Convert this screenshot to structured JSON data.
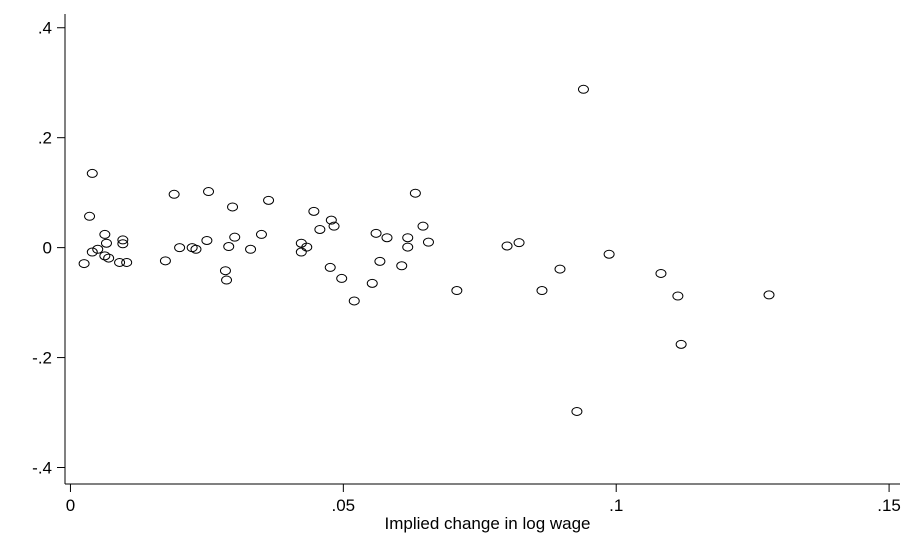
{
  "chart_data": {
    "type": "scatter",
    "title": "",
    "xlabel": "Implied change in log wage",
    "ylabel": "",
    "xlim": [
      -0.001,
      0.152
    ],
    "ylim": [
      -0.43,
      0.425
    ],
    "xticks": [
      {
        "value": 0,
        "label": "0"
      },
      {
        "value": 0.05,
        "label": ".05"
      },
      {
        "value": 0.1,
        "label": ".1"
      },
      {
        "value": 0.15,
        "label": ".15"
      }
    ],
    "yticks": [
      {
        "value": -0.4,
        "label": "-.4"
      },
      {
        "value": -0.2,
        "label": "-.2"
      },
      {
        "value": 0,
        "label": "0"
      },
      {
        "value": 0.2,
        "label": ".2"
      },
      {
        "value": 0.4,
        "label": ".4"
      }
    ],
    "marker": "hollow-circle",
    "grid": false,
    "points": [
      {
        "x": 0.0025,
        "y": -0.029
      },
      {
        "x": 0.0035,
        "y": 0.057
      },
      {
        "x": 0.004,
        "y": 0.135
      },
      {
        "x": 0.004,
        "y": -0.008
      },
      {
        "x": 0.005,
        "y": -0.003
      },
      {
        "x": 0.0063,
        "y": 0.024
      },
      {
        "x": 0.0063,
        "y": -0.015
      },
      {
        "x": 0.0066,
        "y": 0.008
      },
      {
        "x": 0.007,
        "y": -0.019
      },
      {
        "x": 0.009,
        "y": -0.027
      },
      {
        "x": 0.0096,
        "y": 0.014
      },
      {
        "x": 0.0096,
        "y": 0.007
      },
      {
        "x": 0.0103,
        "y": -0.027
      },
      {
        "x": 0.0174,
        "y": -0.024
      },
      {
        "x": 0.019,
        "y": 0.097
      },
      {
        "x": 0.02,
        "y": 0.0
      },
      {
        "x": 0.0223,
        "y": 0.0
      },
      {
        "x": 0.023,
        "y": -0.003
      },
      {
        "x": 0.025,
        "y": 0.013
      },
      {
        "x": 0.0253,
        "y": 0.102
      },
      {
        "x": 0.0284,
        "y": -0.042
      },
      {
        "x": 0.0286,
        "y": -0.059
      },
      {
        "x": 0.029,
        "y": 0.002
      },
      {
        "x": 0.0297,
        "y": 0.074
      },
      {
        "x": 0.0301,
        "y": 0.019
      },
      {
        "x": 0.033,
        "y": -0.003
      },
      {
        "x": 0.035,
        "y": 0.024
      },
      {
        "x": 0.0363,
        "y": 0.086
      },
      {
        "x": 0.0423,
        "y": 0.008
      },
      {
        "x": 0.0423,
        "y": -0.008
      },
      {
        "x": 0.0433,
        "y": 0.001
      },
      {
        "x": 0.0446,
        "y": 0.066
      },
      {
        "x": 0.0457,
        "y": 0.033
      },
      {
        "x": 0.0476,
        "y": -0.036
      },
      {
        "x": 0.0478,
        "y": 0.05
      },
      {
        "x": 0.0483,
        "y": 0.039
      },
      {
        "x": 0.0497,
        "y": -0.056
      },
      {
        "x": 0.052,
        "y": -0.097
      },
      {
        "x": 0.0553,
        "y": -0.065
      },
      {
        "x": 0.056,
        "y": 0.026
      },
      {
        "x": 0.0567,
        "y": -0.025
      },
      {
        "x": 0.058,
        "y": 0.018
      },
      {
        "x": 0.0607,
        "y": -0.033
      },
      {
        "x": 0.0618,
        "y": 0.018
      },
      {
        "x": 0.0618,
        "y": 0.001
      },
      {
        "x": 0.0632,
        "y": 0.099
      },
      {
        "x": 0.0646,
        "y": 0.039
      },
      {
        "x": 0.0656,
        "y": 0.01
      },
      {
        "x": 0.0708,
        "y": -0.078
      },
      {
        "x": 0.08,
        "y": 0.003
      },
      {
        "x": 0.0822,
        "y": 0.009
      },
      {
        "x": 0.0864,
        "y": -0.078
      },
      {
        "x": 0.0897,
        "y": -0.039
      },
      {
        "x": 0.0928,
        "y": -0.298
      },
      {
        "x": 0.094,
        "y": 0.288
      },
      {
        "x": 0.0987,
        "y": -0.012
      },
      {
        "x": 0.1082,
        "y": -0.047
      },
      {
        "x": 0.1113,
        "y": -0.088
      },
      {
        "x": 0.1119,
        "y": -0.176
      },
      {
        "x": 0.128,
        "y": -0.086
      }
    ]
  }
}
